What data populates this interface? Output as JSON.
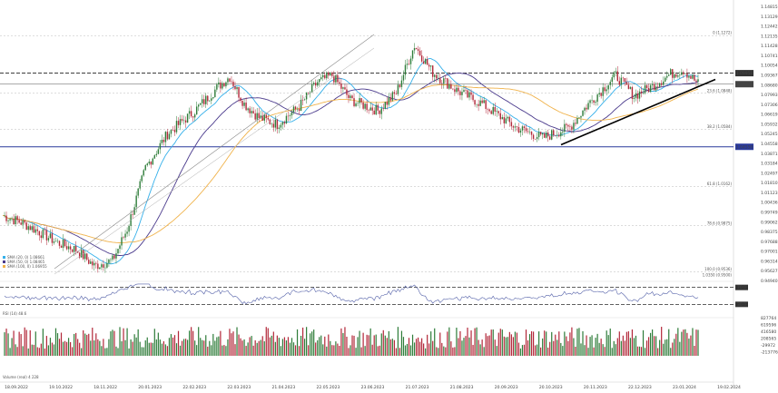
{
  "chart_data": {
    "type": "candlestick",
    "instrument_price_range": [
      0.95,
      1.15
    ],
    "price_axis_ticks": [
      "1.14815",
      "1.13129",
      "1.12442",
      "1.12135",
      "1.11428",
      "1.10741",
      "1.10054",
      "1.09367",
      "1.08680",
      "1.07993",
      "1.07306",
      "1.06619",
      "1.05932",
      "1.05245",
      "1.04558",
      "1.03871",
      "1.03184",
      "1.02497",
      "1.01810",
      "1.01123",
      "1.00436",
      "0.99749",
      "0.99062",
      "0.98375",
      "0.97688",
      "0.97001",
      "0.96314",
      "0.95627",
      "0.94940"
    ],
    "date_ticks": [
      "18.09.2022",
      "19.10.2022",
      "18.11.2022",
      "20.01.2023",
      "22.02.2023",
      "22.03.2023",
      "21.04.2023",
      "22.05.2023",
      "23.06.2023",
      "21.07.2023",
      "21.08.2023",
      "20.09.2023",
      "20.10.2023",
      "20.11.2023",
      "22.12.2023",
      "23.01.2024",
      "19.02.2024"
    ],
    "fib_levels": [
      {
        "label": "0 (1.1272)",
        "price": 1.1272
      },
      {
        "label": "23.6 (1.0848)",
        "price": 1.0848
      },
      {
        "label": "38.2 (1.0584)",
        "price": 1.0584
      },
      {
        "label": "61.8 (1.0162)",
        "price": 1.0162
      },
      {
        "label": "78.6 (0.9875)",
        "price": 0.9875
      },
      {
        "label": "100.0 (0.9536)",
        "price": 0.9536
      }
    ],
    "price_tags": [
      {
        "label": "1.09958",
        "price": 1.0996,
        "style": "dashed-resistance"
      },
      {
        "label": "1.09148",
        "price": 1.0915,
        "style": "current-price"
      },
      {
        "label": "1.04550",
        "price": 1.0455,
        "style": "support"
      }
    ],
    "moving_averages": [
      {
        "name": "SMA (20, 0) 1.08661",
        "color": "#35b0ea"
      },
      {
        "name": "SMA (50, 0) 1.08465",
        "color": "#4a3a8c"
      },
      {
        "name": "SMA (100, 0) 1.06955",
        "color": "#f0b24a"
      }
    ],
    "rsi": {
      "label": "RSI (14) 48.6",
      "levels": [
        70.0,
        30.0
      ]
    },
    "volume": {
      "label": "Volume (real) 4 228",
      "ticks": [
        "827764",
        "619596",
        "416580",
        "208565",
        "-29972",
        "-213776"
      ]
    }
  },
  "ui": {
    "fib_extra_label": "1.0350 (0.9500)"
  }
}
